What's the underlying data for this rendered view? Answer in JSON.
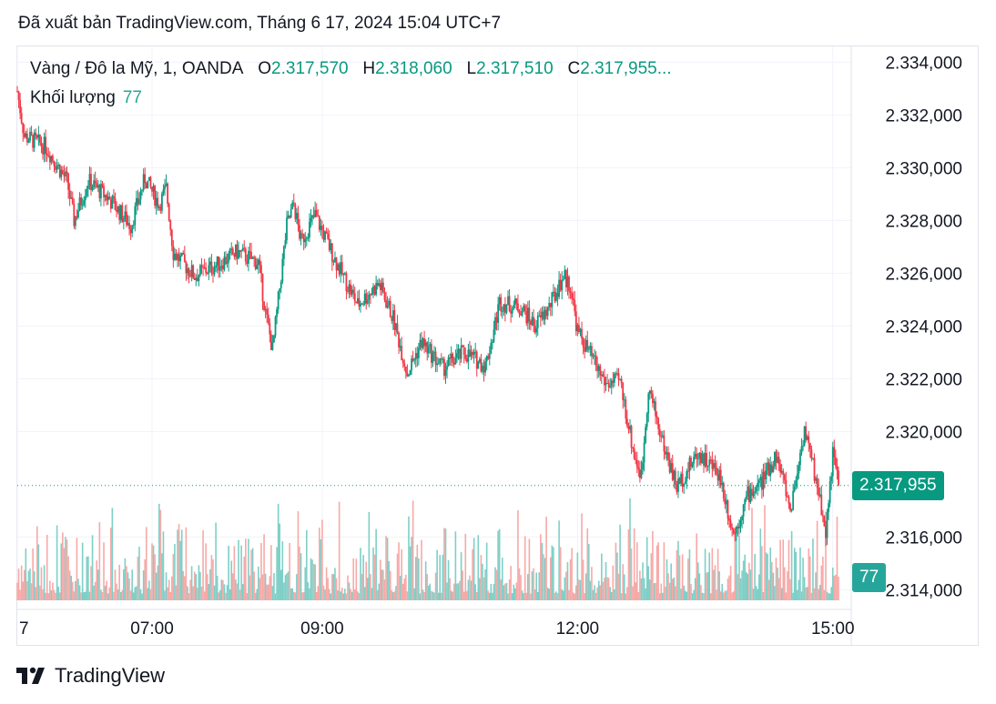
{
  "header": {
    "text": "Đã xuất bản TradingView.com, Tháng 6 17, 2024 15:04 UTC+7"
  },
  "legend": {
    "symbol": "Vàng / Đô la Mỹ, 1, OANDA",
    "o_label": "O",
    "o_value": "2.317,570",
    "h_label": "H",
    "h_value": "2.318,060",
    "l_label": "L",
    "l_value": "2.317,510",
    "c_label": "C",
    "c_value": "2.317,955...",
    "volume_label": "Khối lượng",
    "volume_value": "77"
  },
  "footer": {
    "brand": "TradingView"
  },
  "colors": {
    "up": "#089981",
    "down": "#f23645",
    "vol_up": "#7fcfc7",
    "vol_down": "#f7a9a7",
    "badge_volume": "#26a69a"
  },
  "chart_data": {
    "type": "candlestick",
    "title": "Vàng / Đô la Mỹ, 1, OANDA",
    "ylim": [
      2313600,
      2334600
    ],
    "y_ticks": [
      2334000,
      2332000,
      2330000,
      2328000,
      2326000,
      2324000,
      2322000,
      2320000,
      2316000,
      2314000
    ],
    "y_tick_labels": [
      "2.334,000",
      "2.332,000",
      "2.330,000",
      "2.328,000",
      "2.326,000",
      "2.324,000",
      "2.322,000",
      "2.320,000",
      "2.316,000",
      "2.314,000"
    ],
    "x_ticks": [
      {
        "label": "7",
        "time": "05:25"
      },
      {
        "label": "07:00",
        "time": "07:00"
      },
      {
        "label": "09:00",
        "time": "09:00"
      },
      {
        "label": "12:00",
        "time": "12:00"
      },
      {
        "label": "15:00",
        "time": "15:00"
      }
    ],
    "last_price": 2317955,
    "last_price_label": "2.317,955",
    "last_volume": 77,
    "last_volume_label": "77",
    "time_range": [
      "05:25",
      "15:04"
    ],
    "price_path": [
      [
        "05:25",
        2332900
      ],
      [
        "05:30",
        2331200
      ],
      [
        "05:45",
        2330800
      ],
      [
        "06:00",
        2329500
      ],
      [
        "06:05",
        2328000
      ],
      [
        "06:15",
        2329500
      ],
      [
        "06:30",
        2328800
      ],
      [
        "06:45",
        2327800
      ],
      [
        "06:55",
        2329600
      ],
      [
        "07:05",
        2328600
      ],
      [
        "07:10",
        2329200
      ],
      [
        "07:15",
        2326800
      ],
      [
        "07:30",
        2325900
      ],
      [
        "07:45",
        2326300
      ],
      [
        "08:00",
        2326800
      ],
      [
        "08:15",
        2326400
      ],
      [
        "08:20",
        2324500
      ],
      [
        "08:25",
        2323100
      ],
      [
        "08:35",
        2327800
      ],
      [
        "08:40",
        2328600
      ],
      [
        "08:45",
        2327200
      ],
      [
        "08:55",
        2328200
      ],
      [
        "09:10",
        2326400
      ],
      [
        "09:25",
        2324800
      ],
      [
        "09:40",
        2325600
      ],
      [
        "09:50",
        2324300
      ],
      [
        "10:00",
        2322200
      ],
      [
        "10:10",
        2323400
      ],
      [
        "10:25",
        2322400
      ],
      [
        "10:40",
        2323000
      ],
      [
        "10:55",
        2322500
      ],
      [
        "11:00",
        2323600
      ],
      [
        "11:05",
        2324900
      ],
      [
        "11:20",
        2324700
      ],
      [
        "11:30",
        2324000
      ],
      [
        "11:40",
        2324700
      ],
      [
        "11:50",
        2325900
      ],
      [
        "11:55",
        2325500
      ],
      [
        "12:00",
        2323800
      ],
      [
        "12:10",
        2322800
      ],
      [
        "12:20",
        2321800
      ],
      [
        "12:30",
        2321900
      ],
      [
        "12:40",
        2319100
      ],
      [
        "12:45",
        2318300
      ],
      [
        "12:50",
        2321700
      ],
      [
        "13:00",
        2319600
      ],
      [
        "13:10",
        2317900
      ],
      [
        "13:25",
        2319200
      ],
      [
        "13:40",
        2318400
      ],
      [
        "13:50",
        2316100
      ],
      [
        "14:00",
        2317600
      ],
      [
        "14:10",
        2318100
      ],
      [
        "14:20",
        2319100
      ],
      [
        "14:25",
        2318200
      ],
      [
        "14:30",
        2317000
      ],
      [
        "14:40",
        2320100
      ],
      [
        "14:50",
        2317700
      ],
      [
        "14:55",
        2316200
      ],
      [
        "15:00",
        2319200
      ],
      [
        "15:04",
        2317955
      ]
    ]
  }
}
